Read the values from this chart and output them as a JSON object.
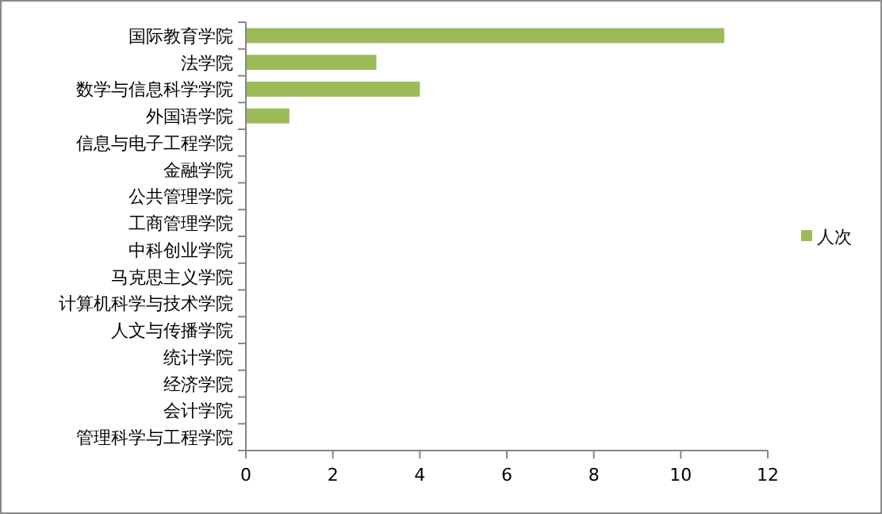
{
  "chart_data": {
    "type": "bar",
    "orientation": "horizontal",
    "categories": [
      "国际教育学院",
      "法学院",
      "数学与信息科学学院",
      "外国语学院",
      "信息与电子工程学院",
      "金融学院",
      "公共管理学院",
      "工商管理学院",
      "中科创业学院",
      "马克思主义学院",
      "计算机科学与技术学院",
      "人文与传播学院",
      "统计学院",
      "经济学院",
      "会计学院",
      "管理科学与工程学院"
    ],
    "series": [
      {
        "name": "人次",
        "color": "#9bbb59",
        "values": [
          11,
          3,
          4,
          1,
          0,
          0,
          0,
          0,
          0,
          0,
          0,
          0,
          0,
          0,
          0,
          0
        ]
      }
    ],
    "xlim": [
      0,
      12
    ],
    "xticks": [
      0,
      2,
      4,
      6,
      8,
      10,
      12
    ],
    "grid": false,
    "legend": "right"
  }
}
